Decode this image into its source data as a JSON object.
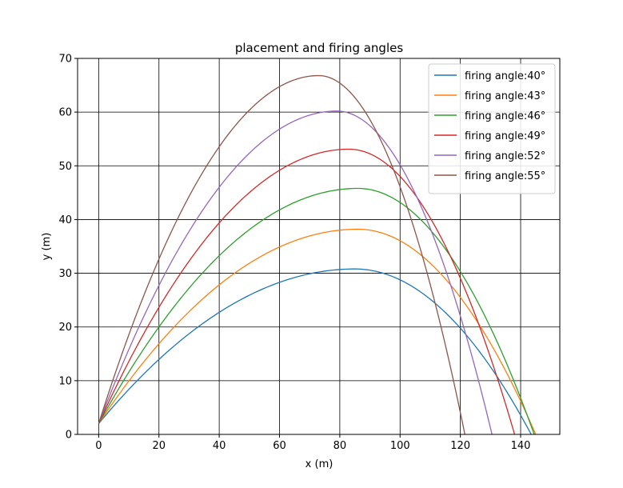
{
  "chart_data": {
    "type": "line",
    "title": "placement and firing angles",
    "xlabel": "x (m)",
    "ylabel": "y (m)",
    "xlim": [
      -7,
      153
    ],
    "ylim": [
      0,
      70
    ],
    "xticks": [
      0,
      20,
      40,
      60,
      80,
      100,
      120,
      140
    ],
    "yticks": [
      0,
      10,
      20,
      30,
      40,
      50,
      60,
      70
    ],
    "grid": true,
    "legend_position": "top-right",
    "launch_height": 2,
    "series": [
      {
        "name": "firing angle:40°",
        "color": "#1f77b4",
        "x": [
          0,
          20,
          40,
          60,
          85,
          100,
          120,
          143.5
        ],
        "y": [
          2,
          12.5,
          21.5,
          27.7,
          30.8,
          29.5,
          21.5,
          0
        ]
      },
      {
        "name": "firing angle:43°",
        "color": "#ff7f0e",
        "x": [
          0,
          20,
          40,
          60,
          86,
          100,
          120,
          145
        ],
        "y": [
          2,
          15,
          25.8,
          33.5,
          38.2,
          36.5,
          27.5,
          0
        ]
      },
      {
        "name": "firing angle:46°",
        "color": "#2ca02c",
        "x": [
          0,
          20,
          40,
          60,
          86,
          100,
          120,
          144.5
        ],
        "y": [
          2,
          17,
          30.5,
          40.3,
          45.8,
          43.5,
          32.5,
          0
        ]
      },
      {
        "name": "firing angle:49°",
        "color": "#d62728",
        "x": [
          0,
          20,
          40,
          60,
          83,
          100,
          120,
          138
        ],
        "y": [
          2,
          20,
          35.8,
          47.5,
          53.1,
          48.5,
          32.5,
          0
        ]
      },
      {
        "name": "firing angle:52°",
        "color": "#9467bd",
        "x": [
          0,
          20,
          40,
          60,
          79,
          100,
          120,
          130.5
        ],
        "y": [
          2,
          23,
          41.5,
          54.8,
          60.2,
          52.5,
          27.5,
          0
        ]
      },
      {
        "name": "firing angle:55°",
        "color": "#8c564b",
        "x": [
          0,
          20,
          40,
          60,
          73,
          100,
          120,
          121.5
        ],
        "y": [
          2,
          27,
          49.5,
          63.5,
          66.8,
          51.5,
          4,
          0
        ]
      }
    ]
  }
}
